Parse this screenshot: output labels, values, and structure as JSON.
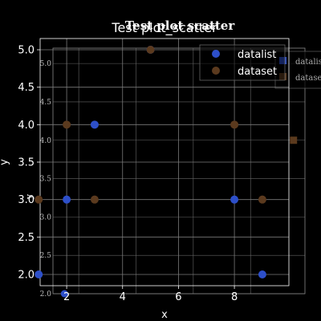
{
  "colors": {
    "background": "#000000",
    "foreground": "#ffffff",
    "grid": "#7a7a7a",
    "series_a": "#2d4fc9",
    "series_b": "#5b3a1e"
  },
  "chart_data": [
    {
      "id": "back",
      "type": "scatter",
      "title": "Test plot scatter",
      "xlabel": "x",
      "ylabel": "y",
      "xlim": [
        1.1,
        9.9
      ],
      "ylim": [
        2.0,
        5.2
      ],
      "xticks": [
        2,
        4,
        6,
        8
      ],
      "yticks": [
        2.0,
        2.5,
        3.0,
        3.5,
        4.0,
        4.5,
        5.0
      ],
      "xticklabels": [
        "",
        "",
        "",
        ""
      ],
      "yticklabels": [
        "2.0",
        "2.5",
        "3.0",
        "3.5",
        "4.0",
        "4.5",
        "5.0"
      ],
      "grid": true,
      "legend": "top-right",
      "series": [
        {
          "name": "datalist",
          "color": "#2d4fc9",
          "marker": "circle",
          "x": [
            1.5
          ],
          "y": [
            2.0
          ]
        },
        {
          "name": "dataset",
          "color": "#5b3a1e",
          "marker": "square",
          "x": [
            9.5
          ],
          "y": [
            4.0
          ]
        }
      ]
    },
    {
      "id": "front",
      "type": "scatter",
      "title": "Test plot_scatter",
      "xlabel": "x",
      "ylabel": "y",
      "xlim": [
        1.05,
        9.95
      ],
      "ylim": [
        1.85,
        5.15
      ],
      "xticks": [
        2,
        4,
        6,
        8
      ],
      "yticks": [
        2.0,
        2.5,
        3.0,
        3.5,
        4.0,
        4.5,
        5.0
      ],
      "xticklabels": [
        "2",
        "4",
        "6",
        "8"
      ],
      "yticklabels": [
        "2.0",
        "2.5",
        "3.0",
        "3.5",
        "4.0",
        "4.5",
        "5.0"
      ],
      "grid": true,
      "legend": "top-right",
      "series": [
        {
          "name": "datalist",
          "color": "#2d4fc9",
          "x": [
            1,
            2,
            3,
            5,
            8,
            9
          ],
          "y": [
            2,
            3,
            4,
            5,
            3,
            2
          ]
        },
        {
          "name": "dataset",
          "color": "#5b3a1e",
          "x": [
            1,
            2,
            3,
            5,
            8,
            9
          ],
          "y": [
            3,
            4,
            3,
            5,
            4,
            3
          ]
        }
      ]
    }
  ]
}
